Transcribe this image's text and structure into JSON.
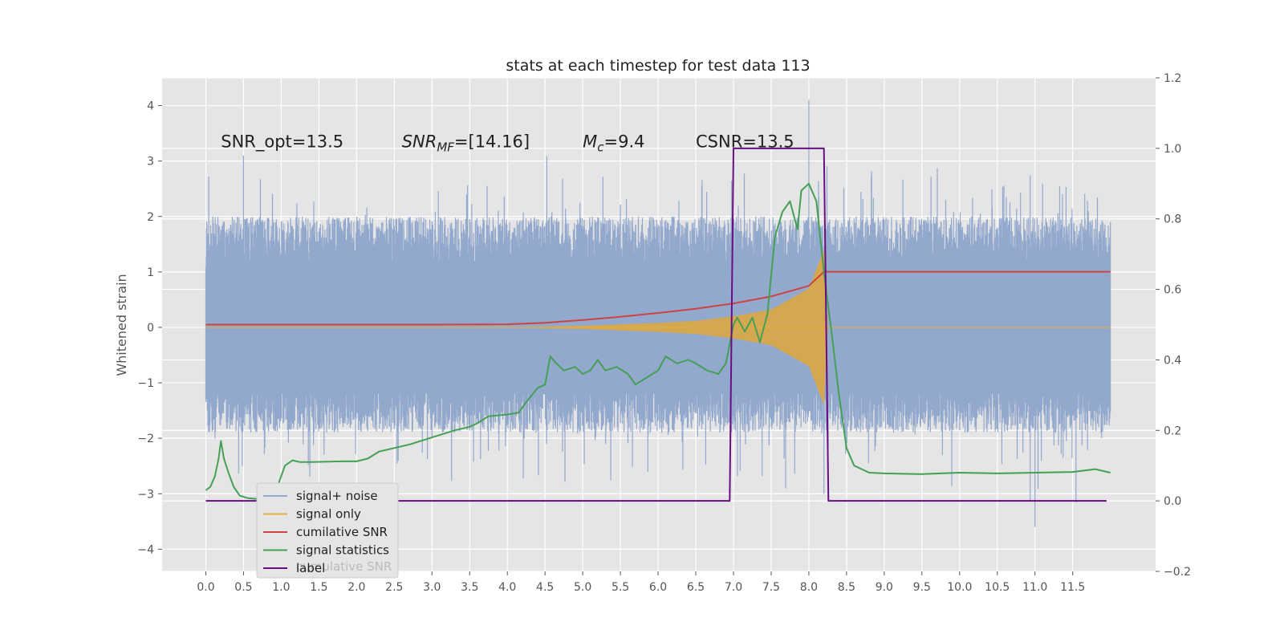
{
  "chart_data": {
    "type": "line",
    "title": "stats at each timestep for test data 113",
    "ylabel": "Whitened strain",
    "xlim": [
      -0.58,
      12.6
    ],
    "ylim": [
      -4.4,
      4.5
    ],
    "y2lim": [
      -0.2,
      1.2
    ],
    "x_ticks": [
      "0.0",
      "0.5",
      "1.0",
      "1.5",
      "2.0",
      "2.5",
      "3.0",
      "3.5",
      "4.0",
      "4.5",
      "5.0",
      "5.5",
      "6.0",
      "6.5",
      "7.0",
      "7.5",
      "8.0",
      "8.5",
      "9.0",
      "9.5",
      "10.0",
      "10.5",
      "11.0",
      "11.5"
    ],
    "y_ticks": [
      "4",
      "3",
      "2",
      "1",
      "0",
      "−1",
      "−2",
      "−3",
      "−4"
    ],
    "y_tick_values": [
      4,
      3,
      2,
      1,
      0,
      -1,
      -2,
      -3,
      -4
    ],
    "y2_ticks": [
      "1.2",
      "1.0",
      "0.8",
      "0.6",
      "0.4",
      "0.2",
      "0.0",
      "−0.2"
    ],
    "y2_tick_values": [
      1.2,
      1.0,
      0.8,
      0.6,
      0.4,
      0.2,
      0.0,
      -0.2
    ],
    "grid": true,
    "legend_position": "lower-left",
    "annotations": [
      {
        "text": "SNR_opt=13.5",
        "x": 0.2,
        "y": 3.25
      },
      {
        "text": "SNR_MF=[14.16]",
        "x": 2.6,
        "y": 3.25
      },
      {
        "text": "M_c=9.4",
        "x": 5.0,
        "y": 3.25
      },
      {
        "text": "CSNR=13.5",
        "x": 6.5,
        "y": 3.25
      }
    ],
    "legend_hidden_text": "cumulative SNR",
    "series": [
      {
        "name": "signal+ noise",
        "axis": "left",
        "color": "#92a8cc",
        "description": "noisy whitened strain spanning roughly -2 to 2 with spikes to about ±4 over t = 0 to 12",
        "x_range": [
          0,
          12
        ],
        "points_approx": [
          [
            0,
            0.2
          ],
          [
            0.5,
            3.1
          ],
          [
            1,
            -1.6
          ],
          [
            2,
            1.9
          ],
          [
            3,
            -2.0
          ],
          [
            4,
            1.7
          ],
          [
            5,
            -1.5
          ],
          [
            6,
            1.8
          ],
          [
            7,
            -1.4
          ],
          [
            8,
            4.1
          ],
          [
            8.2,
            -3.0
          ],
          [
            9,
            1.8
          ],
          [
            10,
            -1.7
          ],
          [
            11,
            -3.6
          ],
          [
            12,
            1.9
          ]
        ]
      },
      {
        "name": "signal only",
        "axis": "left",
        "color": "#e0b040",
        "description": "chirp envelope symmetric about 0, amplitude growing from 0 at t=4 to about 1.4 at t=8.2, then 0",
        "points": [
          [
            0,
            0
          ],
          [
            4.0,
            0
          ],
          [
            5.0,
            0.03
          ],
          [
            6.0,
            0.08
          ],
          [
            6.5,
            0.12
          ],
          [
            7.0,
            0.2
          ],
          [
            7.5,
            0.32
          ],
          [
            8.0,
            0.7
          ],
          [
            8.2,
            1.4
          ],
          [
            8.25,
            0
          ],
          [
            12,
            0
          ]
        ]
      },
      {
        "name": "cumilative SNR",
        "axis": "right",
        "color": "#cc4444",
        "points": [
          [
            0,
            0.5
          ],
          [
            1,
            0.5
          ],
          [
            2,
            0.5
          ],
          [
            3,
            0.5
          ],
          [
            4,
            0.501
          ],
          [
            4.5,
            0.505
          ],
          [
            5,
            0.513
          ],
          [
            5.5,
            0.522
          ],
          [
            6,
            0.533
          ],
          [
            6.5,
            0.545
          ],
          [
            7,
            0.56
          ],
          [
            7.5,
            0.58
          ],
          [
            8,
            0.61
          ],
          [
            8.2,
            0.65
          ],
          [
            8.25,
            0.65
          ],
          [
            12,
            0.65
          ]
        ]
      },
      {
        "name": "signal statistics",
        "axis": "right",
        "color": "#44a055",
        "points": [
          [
            0,
            0.03
          ],
          [
            0.06,
            0.04
          ],
          [
            0.12,
            0.07
          ],
          [
            0.17,
            0.12
          ],
          [
            0.2,
            0.17
          ],
          [
            0.24,
            0.12
          ],
          [
            0.3,
            0.08
          ],
          [
            0.37,
            0.04
          ],
          [
            0.45,
            0.015
          ],
          [
            0.55,
            0.008
          ],
          [
            0.7,
            0.005
          ],
          [
            0.85,
            0.006
          ],
          [
            0.95,
            0.04
          ],
          [
            1.05,
            0.1
          ],
          [
            1.15,
            0.115
          ],
          [
            1.25,
            0.11
          ],
          [
            1.4,
            0.11
          ],
          [
            1.8,
            0.112
          ],
          [
            2.0,
            0.112
          ],
          [
            2.15,
            0.12
          ],
          [
            2.3,
            0.14
          ],
          [
            2.5,
            0.15
          ],
          [
            2.7,
            0.16
          ],
          [
            3.0,
            0.18
          ],
          [
            3.3,
            0.2
          ],
          [
            3.5,
            0.21
          ],
          [
            3.6,
            0.22
          ],
          [
            3.75,
            0.24
          ],
          [
            4.0,
            0.245
          ],
          [
            4.15,
            0.25
          ],
          [
            4.25,
            0.28
          ],
          [
            4.4,
            0.32
          ],
          [
            4.5,
            0.33
          ],
          [
            4.57,
            0.41
          ],
          [
            4.65,
            0.39
          ],
          [
            4.75,
            0.37
          ],
          [
            4.9,
            0.38
          ],
          [
            5.0,
            0.36
          ],
          [
            5.1,
            0.37
          ],
          [
            5.2,
            0.4
          ],
          [
            5.3,
            0.37
          ],
          [
            5.45,
            0.38
          ],
          [
            5.6,
            0.36
          ],
          [
            5.7,
            0.33
          ],
          [
            5.85,
            0.35
          ],
          [
            6.0,
            0.37
          ],
          [
            6.1,
            0.41
          ],
          [
            6.25,
            0.39
          ],
          [
            6.4,
            0.4
          ],
          [
            6.5,
            0.39
          ],
          [
            6.65,
            0.37
          ],
          [
            6.8,
            0.36
          ],
          [
            6.9,
            0.39
          ],
          [
            7.0,
            0.5
          ],
          [
            7.05,
            0.52
          ],
          [
            7.15,
            0.48
          ],
          [
            7.25,
            0.52
          ],
          [
            7.35,
            0.45
          ],
          [
            7.45,
            0.53
          ],
          [
            7.55,
            0.75
          ],
          [
            7.65,
            0.82
          ],
          [
            7.75,
            0.85
          ],
          [
            7.85,
            0.77
          ],
          [
            7.9,
            0.88
          ],
          [
            8.0,
            0.9
          ],
          [
            8.1,
            0.85
          ],
          [
            8.2,
            0.65
          ],
          [
            8.3,
            0.48
          ],
          [
            8.4,
            0.3
          ],
          [
            8.5,
            0.15
          ],
          [
            8.6,
            0.1
          ],
          [
            8.8,
            0.08
          ],
          [
            9.0,
            0.078
          ],
          [
            9.5,
            0.076
          ],
          [
            10.0,
            0.08
          ],
          [
            10.5,
            0.078
          ],
          [
            11.0,
            0.08
          ],
          [
            11.5,
            0.082
          ],
          [
            11.8,
            0.09
          ],
          [
            12.0,
            0.08
          ]
        ]
      },
      {
        "name": "label",
        "axis": "right",
        "color": "#6a0d83",
        "points": [
          [
            0,
            0
          ],
          [
            6.95,
            0
          ],
          [
            7.0,
            1.0
          ],
          [
            8.2,
            1.0
          ],
          [
            8.26,
            0
          ],
          [
            11.95,
            0
          ]
        ]
      }
    ]
  }
}
